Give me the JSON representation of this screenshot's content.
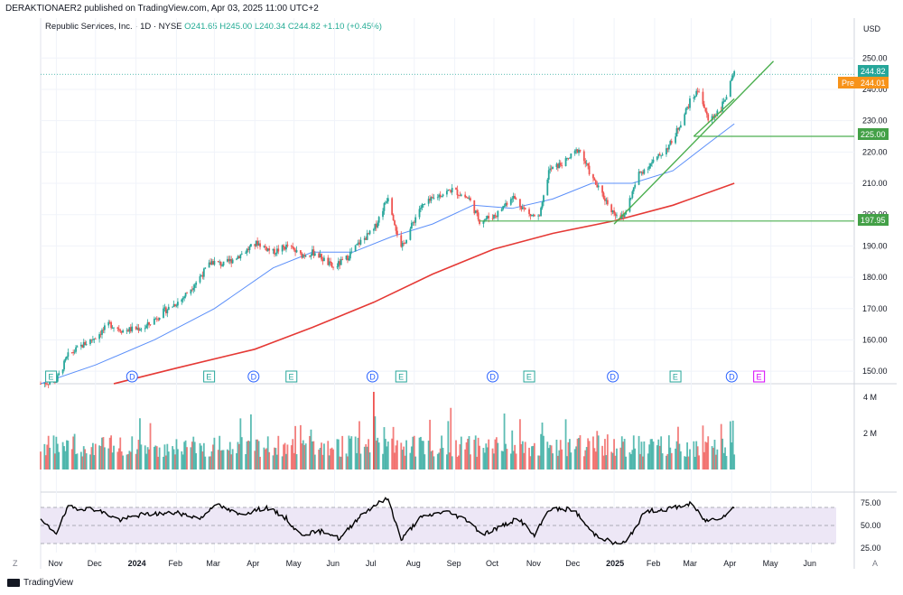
{
  "header": {
    "publisher": "DERAKTIONAER2 published on TradingView.com, Apr 03, 2025 11:00 UTC+2"
  },
  "legend": {
    "symbol": "Republic Services, Inc. · 1D · NYSE",
    "open": "O241.65",
    "high": "H245.00",
    "low": "L240.34",
    "close": "C244.82",
    "change": "+1.10 (+0.45%)"
  },
  "currency": "USD",
  "footer": {
    "brand": "TradingView",
    "z_label": "Z",
    "a_label": "A"
  },
  "colors": {
    "up": "#26a69a",
    "down": "#ef5350",
    "ma_fast": "#5b8ff9",
    "ma_slow": "#e53935",
    "trend": "#4caf50",
    "rsi_line": "#000000",
    "rsi_band": "#ede7f6",
    "pre": "#f7931a"
  },
  "chart_data": {
    "type": "candlestick",
    "title": "Republic Services, Inc. · 1D · NYSE",
    "x_labels": [
      "Nov",
      "Dec",
      "2024",
      "Feb",
      "Mar",
      "Apr",
      "May",
      "Jun",
      "Jul",
      "Aug",
      "Sep",
      "Oct",
      "Nov",
      "Dec",
      "2025",
      "Feb",
      "Mar",
      "Apr",
      "May",
      "Jun"
    ],
    "price_axis": {
      "ticks": [
        150,
        160,
        170,
        180,
        190,
        200,
        210,
        220,
        230,
        240,
        250
      ],
      "ylim": [
        146,
        257
      ],
      "last_price_label": "244.82",
      "pre_label": "Pre",
      "pre_price": "244.01"
    },
    "horizontal_lines": [
      {
        "label": "225.00",
        "value": 225.0
      },
      {
        "label": "197.95",
        "value": 197.95
      }
    ],
    "trendlines": [
      {
        "name": "rising-support",
        "from": {
          "month": "2025-01-01",
          "value": 197
        },
        "to": {
          "month": "2025-05-03",
          "value": 249
        }
      },
      {
        "name": "channel-floor",
        "from": {
          "month": "2025-03-03",
          "value": 225
        },
        "to": {
          "month": "2025-04-03",
          "value": 237
        }
      }
    ],
    "price_series": [
      {
        "date": "2023-10-20",
        "value": 146
      },
      {
        "date": "2023-11-01",
        "value": 147
      },
      {
        "date": "2023-11-10",
        "value": 155
      },
      {
        "date": "2023-11-20",
        "value": 158
      },
      {
        "date": "2023-12-01",
        "value": 161
      },
      {
        "date": "2023-12-12",
        "value": 165
      },
      {
        "date": "2023-12-22",
        "value": 163
      },
      {
        "date": "2024-01-08",
        "value": 164
      },
      {
        "date": "2024-01-22",
        "value": 169
      },
      {
        "date": "2024-02-05",
        "value": 173
      },
      {
        "date": "2024-02-15",
        "value": 178
      },
      {
        "date": "2024-02-28",
        "value": 185
      },
      {
        "date": "2024-03-08",
        "value": 184
      },
      {
        "date": "2024-03-20",
        "value": 187
      },
      {
        "date": "2024-04-03",
        "value": 191
      },
      {
        "date": "2024-04-15",
        "value": 188
      },
      {
        "date": "2024-04-26",
        "value": 190
      },
      {
        "date": "2024-05-06",
        "value": 187
      },
      {
        "date": "2024-05-17",
        "value": 188
      },
      {
        "date": "2024-05-31",
        "value": 183
      },
      {
        "date": "2024-06-10",
        "value": 186
      },
      {
        "date": "2024-06-20",
        "value": 191
      },
      {
        "date": "2024-07-01",
        "value": 195
      },
      {
        "date": "2024-07-12",
        "value": 206
      },
      {
        "date": "2024-07-22",
        "value": 189
      },
      {
        "date": "2024-08-05",
        "value": 202
      },
      {
        "date": "2024-08-19",
        "value": 206
      },
      {
        "date": "2024-08-30",
        "value": 208
      },
      {
        "date": "2024-09-12",
        "value": 205
      },
      {
        "date": "2024-09-20",
        "value": 198
      },
      {
        "date": "2024-10-03",
        "value": 200
      },
      {
        "date": "2024-10-15",
        "value": 206
      },
      {
        "date": "2024-10-28",
        "value": 200
      },
      {
        "date": "2024-11-05",
        "value": 199
      },
      {
        "date": "2024-11-12",
        "value": 214
      },
      {
        "date": "2024-11-25",
        "value": 217
      },
      {
        "date": "2024-12-05",
        "value": 221
      },
      {
        "date": "2024-12-16",
        "value": 211
      },
      {
        "date": "2024-12-31",
        "value": 201
      },
      {
        "date": "2025-01-08",
        "value": 199
      },
      {
        "date": "2025-01-20",
        "value": 213
      },
      {
        "date": "2025-02-03",
        "value": 218
      },
      {
        "date": "2025-02-14",
        "value": 223
      },
      {
        "date": "2025-02-28",
        "value": 236
      },
      {
        "date": "2025-03-07",
        "value": 240
      },
      {
        "date": "2025-03-14",
        "value": 230
      },
      {
        "date": "2025-03-24",
        "value": 234
      },
      {
        "date": "2025-04-03",
        "value": 244.82
      }
    ],
    "ma_fast": [
      {
        "date": "2023-10-20",
        "value": 146
      },
      {
        "date": "2023-12-01",
        "value": 152
      },
      {
        "date": "2024-01-15",
        "value": 160
      },
      {
        "date": "2024-03-01",
        "value": 170
      },
      {
        "date": "2024-04-15",
        "value": 183
      },
      {
        "date": "2024-05-15",
        "value": 188
      },
      {
        "date": "2024-06-15",
        "value": 188
      },
      {
        "date": "2024-07-15",
        "value": 193
      },
      {
        "date": "2024-08-15",
        "value": 197
      },
      {
        "date": "2024-09-15",
        "value": 203
      },
      {
        "date": "2024-10-15",
        "value": 202
      },
      {
        "date": "2024-11-15",
        "value": 205
      },
      {
        "date": "2024-12-15",
        "value": 210
      },
      {
        "date": "2025-01-15",
        "value": 210
      },
      {
        "date": "2025-02-15",
        "value": 214
      },
      {
        "date": "2025-03-15",
        "value": 223
      },
      {
        "date": "2025-04-03",
        "value": 229
      }
    ],
    "ma_slow": [
      {
        "date": "2023-12-15",
        "value": 146
      },
      {
        "date": "2024-02-01",
        "value": 151
      },
      {
        "date": "2024-04-01",
        "value": 157
      },
      {
        "date": "2024-05-15",
        "value": 164
      },
      {
        "date": "2024-07-01",
        "value": 172
      },
      {
        "date": "2024-08-15",
        "value": 181
      },
      {
        "date": "2024-10-01",
        "value": 189
      },
      {
        "date": "2024-11-15",
        "value": 194
      },
      {
        "date": "2025-01-01",
        "value": 198
      },
      {
        "date": "2025-02-15",
        "value": 203
      },
      {
        "date": "2025-04-03",
        "value": 210
      }
    ],
    "events": [
      {
        "label": "E",
        "date": "2023-10-28",
        "kind": "earnings"
      },
      {
        "label": "D",
        "date": "2023-12-29",
        "kind": "dividend"
      },
      {
        "label": "E",
        "date": "2024-02-26",
        "kind": "earnings"
      },
      {
        "label": "D",
        "date": "2024-03-31",
        "kind": "dividend"
      },
      {
        "label": "E",
        "date": "2024-04-29",
        "kind": "earnings"
      },
      {
        "label": "D",
        "date": "2024-06-30",
        "kind": "dividend"
      },
      {
        "label": "E",
        "date": "2024-07-22",
        "kind": "earnings"
      },
      {
        "label": "D",
        "date": "2024-09-30",
        "kind": "dividend"
      },
      {
        "label": "E",
        "date": "2024-10-28",
        "kind": "earnings"
      },
      {
        "label": "D",
        "date": "2024-12-31",
        "kind": "dividend"
      },
      {
        "label": "E",
        "date": "2025-02-17",
        "kind": "earnings"
      },
      {
        "label": "D",
        "date": "2025-04-01",
        "kind": "dividend"
      },
      {
        "label": "E",
        "date": "2025-04-22",
        "kind": "earnings-upcoming"
      }
    ],
    "volume": {
      "axis_ticks": [
        {
          "label": "4 M",
          "value": 4
        },
        {
          "label": "2 M",
          "value": 2
        }
      ],
      "unit": "M",
      "ylim": [
        0,
        4.5
      ]
    },
    "rsi": {
      "axis_ticks": [
        {
          "label": "75.00",
          "value": 75
        },
        {
          "label": "50.00",
          "value": 50
        },
        {
          "label": "25.00",
          "value": 25
        }
      ],
      "ylim": [
        20,
        82
      ],
      "band": [
        30,
        70
      ],
      "series": [
        {
          "date": "2023-10-20",
          "value": 55
        },
        {
          "date": "2023-11-01",
          "value": 42
        },
        {
          "date": "2023-11-10",
          "value": 70
        },
        {
          "date": "2023-12-01",
          "value": 68
        },
        {
          "date": "2023-12-20",
          "value": 56
        },
        {
          "date": "2024-01-05",
          "value": 62
        },
        {
          "date": "2024-02-01",
          "value": 64
        },
        {
          "date": "2024-02-20",
          "value": 58
        },
        {
          "date": "2024-03-01",
          "value": 74
        },
        {
          "date": "2024-03-20",
          "value": 62
        },
        {
          "date": "2024-04-10",
          "value": 70
        },
        {
          "date": "2024-04-25",
          "value": 58
        },
        {
          "date": "2024-05-05",
          "value": 40
        },
        {
          "date": "2024-05-25",
          "value": 44
        },
        {
          "date": "2024-06-05",
          "value": 35
        },
        {
          "date": "2024-06-20",
          "value": 60
        },
        {
          "date": "2024-07-01",
          "value": 72
        },
        {
          "date": "2024-07-12",
          "value": 80
        },
        {
          "date": "2024-07-22",
          "value": 34
        },
        {
          "date": "2024-08-05",
          "value": 58
        },
        {
          "date": "2024-08-25",
          "value": 66
        },
        {
          "date": "2024-09-12",
          "value": 55
        },
        {
          "date": "2024-09-22",
          "value": 40
        },
        {
          "date": "2024-10-05",
          "value": 48
        },
        {
          "date": "2024-10-20",
          "value": 58
        },
        {
          "date": "2024-11-01",
          "value": 38
        },
        {
          "date": "2024-11-12",
          "value": 68
        },
        {
          "date": "2024-12-01",
          "value": 68
        },
        {
          "date": "2024-12-15",
          "value": 42
        },
        {
          "date": "2025-01-01",
          "value": 30
        },
        {
          "date": "2025-01-10",
          "value": 31
        },
        {
          "date": "2025-01-25",
          "value": 66
        },
        {
          "date": "2025-02-10",
          "value": 68
        },
        {
          "date": "2025-03-01",
          "value": 74
        },
        {
          "date": "2025-03-12",
          "value": 55
        },
        {
          "date": "2025-03-25",
          "value": 60
        },
        {
          "date": "2025-04-03",
          "value": 70
        }
      ]
    }
  }
}
